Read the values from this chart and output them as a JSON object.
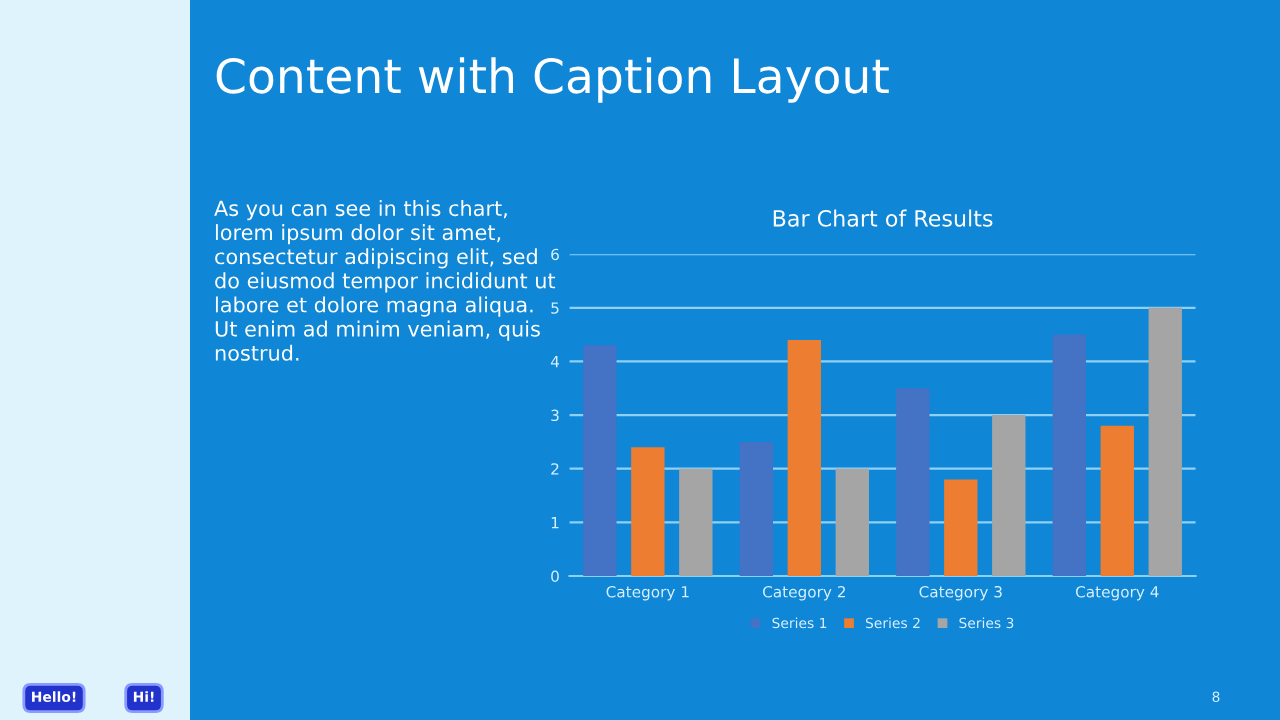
{
  "chart_data": {
    "type": "bar",
    "title": "Bar Chart of Results",
    "categories": [
      "Category 1",
      "Category 2",
      "Category 3",
      "Category 4"
    ],
    "series": [
      {
        "name": "Series 1",
        "color": "#4472c4",
        "values": [
          4.3,
          2.5,
          3.5,
          4.5
        ]
      },
      {
        "name": "Series 2",
        "color": "#ed7d31",
        "values": [
          2.4,
          4.4,
          1.8,
          2.8
        ]
      },
      {
        "name": "Series 3",
        "color": "#a5a5a5",
        "values": [
          2,
          2,
          3,
          5
        ]
      }
    ],
    "ylim": [
      0,
      6
    ],
    "yticks": [
      0,
      1,
      2,
      3,
      4,
      5,
      6
    ],
    "grid": "y",
    "legend": "bottom",
    "annotations": [
      "Content with Caption Layout",
      "As you can see in this chart, lorem ipsum dolor sit amet, consectetur adipiscing elit, sed do eiusmod tempor incididunt ut labore et dolore magna aliqua. Ut enim ad minim veniam, quis nostrud.",
      "Hello!",
      "Hi!",
      "8"
    ]
  }
}
